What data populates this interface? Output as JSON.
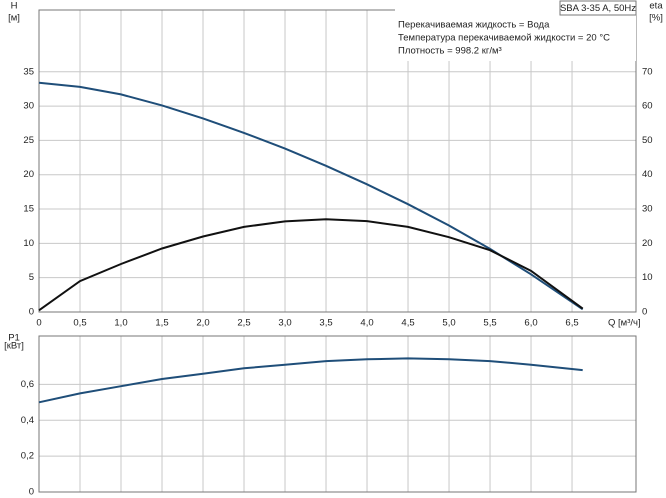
{
  "chart_data": [
    {
      "type": "line",
      "ylabel": "H",
      "yunit": "[м]",
      "y2label": "eta",
      "y2unit": "[%]",
      "xlabel": "Q [м³/ч]",
      "info_title": "SBA 3-35 A, 50Hz",
      "info_lines": [
        "Перекачиваемая жидкость = Вода",
        "Температура перекачиваемой жидкости = 20 °C",
        "Плотность = 998.2 кг/м³"
      ],
      "x": [
        0,
        0.5,
        1.0,
        1.5,
        2.0,
        2.5,
        3.0,
        3.5,
        4.0,
        4.5,
        5.0,
        5.5,
        6.0,
        6.63
      ],
      "series": [
        {
          "color": "#1f4e79",
          "values": [
            33.4,
            32.8,
            31.7,
            30.1,
            28.2,
            26.1,
            23.8,
            21.3,
            18.6,
            15.7,
            12.6,
            9.2,
            5.5,
            0.4
          ]
        },
        {
          "color": "#111111",
          "axis": "y2",
          "values": [
            0.5,
            9,
            14,
            18.5,
            22,
            24.8,
            26.4,
            27,
            26.5,
            24.8,
            21.8,
            18,
            12,
            1
          ]
        }
      ],
      "xlim": [
        0,
        7.28
      ],
      "xticks": [
        0,
        {
          "value": 0.5,
          "label": "0,5"
        },
        {
          "value": 1,
          "label": "1,0"
        },
        {
          "value": 1.5,
          "label": "1,5"
        },
        {
          "value": 2,
          "label": "2,0"
        },
        {
          "value": 2.5,
          "label": "2,5"
        },
        {
          "value": 3,
          "label": "3,0"
        },
        {
          "value": 3.5,
          "label": "3,5"
        },
        {
          "value": 4,
          "label": "4,0"
        },
        {
          "value": 4.5,
          "label": "4,5"
        },
        {
          "value": 5,
          "label": "5,0"
        },
        {
          "value": 5.5,
          "label": "5,5"
        },
        {
          "value": 6,
          "label": "6,0"
        },
        {
          "value": 6.5,
          "label": "6,5"
        }
      ],
      "ylim": [
        0,
        44
      ],
      "yticks": [
        0,
        5,
        10,
        15,
        20,
        25,
        30,
        35
      ],
      "y2lim": [
        0,
        88
      ],
      "y2ticks": [
        0,
        10,
        20,
        30,
        40,
        50,
        60,
        70
      ],
      "grid": true
    },
    {
      "type": "line",
      "ylabel": "P1",
      "yunit": "[кВт]",
      "x": [
        0,
        0.5,
        1.0,
        1.5,
        2.0,
        2.5,
        3.0,
        3.5,
        4.0,
        4.5,
        5.0,
        5.5,
        6.0,
        6.63
      ],
      "series": [
        {
          "color": "#1f4e79",
          "values": [
            0.5,
            0.55,
            0.59,
            0.63,
            0.66,
            0.69,
            0.71,
            0.73,
            0.74,
            0.745,
            0.74,
            0.73,
            0.71,
            0.68
          ]
        }
      ],
      "xlim": [
        0,
        7.28
      ],
      "ylim": [
        0,
        0.87
      ],
      "yticks": [
        0,
        {
          "value": 0.2,
          "label": "0,2"
        },
        {
          "value": 0.4,
          "label": "0,4"
        },
        {
          "value": 0.6,
          "label": "0,6"
        }
      ],
      "grid": true
    }
  ]
}
